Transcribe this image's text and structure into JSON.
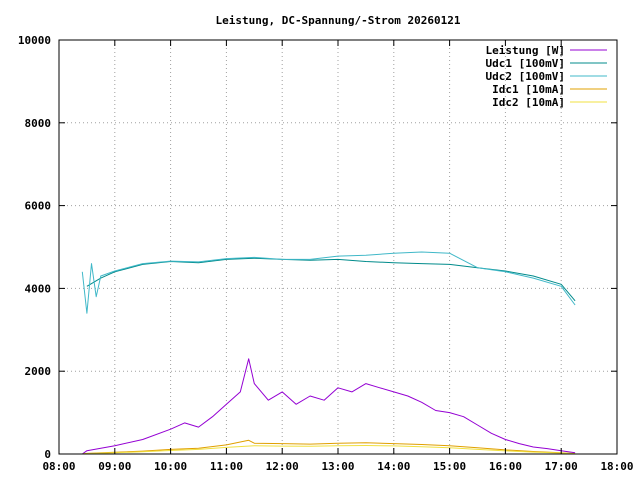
{
  "chart_data": {
    "type": "line",
    "title": "Leistung, DC-Spannung/-Strom 20260121",
    "xlabel": "",
    "ylabel": "",
    "x_range": [
      "08:00",
      "18:00"
    ],
    "ylim": [
      0,
      10000
    ],
    "x_ticks": [
      "08:00",
      "09:00",
      "10:00",
      "11:00",
      "12:00",
      "13:00",
      "14:00",
      "15:00",
      "16:00",
      "17:00",
      "18:00"
    ],
    "y_ticks": [
      "0",
      "2000",
      "4000",
      "6000",
      "8000",
      "10000"
    ],
    "y_tick_values": [
      0,
      2000,
      4000,
      6000,
      8000,
      10000
    ],
    "grid": true,
    "legend_position": "top-right",
    "series": [
      {
        "name": "Leistung [W]",
        "color": "#9400d3",
        "x": [
          "08:25",
          "08:30",
          "09:00",
          "09:30",
          "10:00",
          "10:15",
          "10:30",
          "10:45",
          "11:00",
          "11:15",
          "11:24",
          "11:30",
          "11:45",
          "12:00",
          "12:15",
          "12:30",
          "12:45",
          "13:00",
          "13:15",
          "13:30",
          "13:45",
          "14:00",
          "14:15",
          "14:30",
          "14:45",
          "15:00",
          "15:15",
          "15:30",
          "15:45",
          "16:00",
          "16:15",
          "16:30",
          "16:45",
          "17:00",
          "17:15"
        ],
        "values": [
          0,
          80,
          200,
          350,
          600,
          750,
          650,
          900,
          1200,
          1500,
          2300,
          1700,
          1300,
          1500,
          1200,
          1400,
          1300,
          1600,
          1500,
          1700,
          1600,
          1500,
          1400,
          1250,
          1050,
          1000,
          900,
          700,
          500,
          350,
          250,
          170,
          130,
          80,
          30
        ]
      },
      {
        "name": "Udc1 [100mV]",
        "color": "#008b8b",
        "x": [
          "08:30",
          "08:45",
          "09:00",
          "09:30",
          "10:00",
          "10:30",
          "11:00",
          "11:30",
          "12:00",
          "12:30",
          "13:00",
          "13:30",
          "14:00",
          "14:30",
          "15:00",
          "15:30",
          "16:00",
          "16:30",
          "17:00",
          "17:15"
        ],
        "values": [
          4050,
          4250,
          4400,
          4580,
          4650,
          4620,
          4700,
          4730,
          4700,
          4680,
          4700,
          4650,
          4620,
          4600,
          4580,
          4500,
          4420,
          4300,
          4100,
          3700
        ]
      },
      {
        "name": "Udc2 [100mV]",
        "color": "#40b8c8",
        "x": [
          "08:25",
          "08:30",
          "08:35",
          "08:40",
          "08:45",
          "09:00",
          "09:30",
          "10:00",
          "10:30",
          "11:00",
          "11:30",
          "12:00",
          "12:30",
          "13:00",
          "13:30",
          "14:00",
          "14:30",
          "15:00",
          "15:30",
          "16:00",
          "16:30",
          "17:00",
          "17:15"
        ],
        "values": [
          4400,
          3400,
          4600,
          3800,
          4300,
          4420,
          4600,
          4660,
          4640,
          4720,
          4750,
          4700,
          4700,
          4780,
          4800,
          4850,
          4880,
          4850,
          4500,
          4400,
          4250,
          4050,
          3600
        ]
      },
      {
        "name": "Idc1 [10mA]",
        "color": "#e0a000",
        "x": [
          "08:25",
          "08:30",
          "09:00",
          "09:30",
          "10:00",
          "10:30",
          "11:00",
          "11:24",
          "11:30",
          "12:00",
          "12:30",
          "13:00",
          "13:30",
          "14:00",
          "14:30",
          "15:00",
          "15:30",
          "16:00",
          "16:30",
          "17:00",
          "17:15"
        ],
        "values": [
          0,
          15,
          40,
          70,
          110,
          140,
          220,
          330,
          260,
          250,
          240,
          260,
          270,
          250,
          230,
          200,
          150,
          100,
          60,
          30,
          10
        ]
      },
      {
        "name": "Idc2 [10mA]",
        "color": "#f0e040",
        "x": [
          "08:25",
          "08:30",
          "09:00",
          "09:30",
          "10:00",
          "10:30",
          "11:00",
          "11:30",
          "12:00",
          "12:30",
          "13:00",
          "13:30",
          "14:00",
          "14:30",
          "15:00",
          "15:30",
          "16:00",
          "16:30",
          "17:00",
          "17:15"
        ],
        "values": [
          0,
          10,
          30,
          55,
          85,
          110,
          160,
          200,
          190,
          185,
          200,
          205,
          195,
          175,
          150,
          110,
          75,
          45,
          25,
          5
        ]
      }
    ]
  }
}
